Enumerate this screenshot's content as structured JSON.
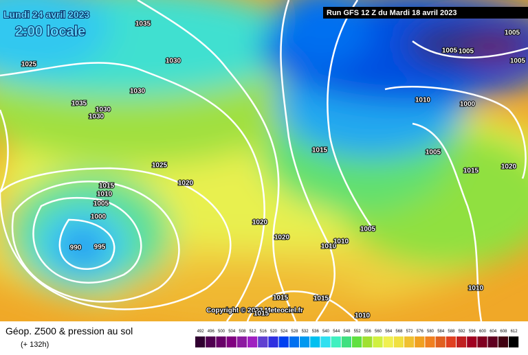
{
  "header": {
    "date": "Lundi 24 avril 2023",
    "time": "2:00 locale",
    "run": "Run GFS 12 Z du Mardi 18 avril 2023"
  },
  "isobar_labels": [
    "1035",
    "1025",
    "1030",
    "1030",
    "1035",
    "1030",
    "1030",
    "1025",
    "1020",
    "1015",
    "1010",
    "1005",
    "1000",
    "990",
    "995",
    "1020",
    "1020",
    "1010",
    "1010",
    "1005",
    "1015",
    "1010",
    "1000",
    "1005",
    "1015",
    "1020",
    "1005",
    "1005",
    "1005",
    "1005",
    "1015",
    "1015",
    "1015",
    "1010",
    "1010"
  ],
  "copyright": "Copyright © 2023 Meteociel.fr",
  "footer": {
    "title": "Géop. Z500 & pression au sol",
    "lead": "(+ 132h)"
  },
  "scale": {
    "values": [
      492,
      496,
      500,
      504,
      508,
      512,
      516,
      520,
      524,
      528,
      532,
      536,
      540,
      544,
      548,
      552,
      556,
      560,
      564,
      568,
      572,
      576,
      580,
      584,
      588,
      592,
      596,
      600,
      604,
      608,
      612
    ],
    "colors": [
      "#300030",
      "#500050",
      "#680068",
      "#800080",
      "#8c1aa0",
      "#a020c0",
      "#6040d0",
      "#3030e0",
      "#0040f0",
      "#0070f0",
      "#0098f0",
      "#00c0f0",
      "#30e0f0",
      "#40f0c0",
      "#40e080",
      "#60e040",
      "#a0e030",
      "#d0f040",
      "#f0f050",
      "#f0e040",
      "#f0c030",
      "#f0a020",
      "#f08020",
      "#e06020",
      "#e04020",
      "#c02020",
      "#a00020",
      "#800020",
      "#600020",
      "#400010",
      "#000000"
    ]
  }
}
